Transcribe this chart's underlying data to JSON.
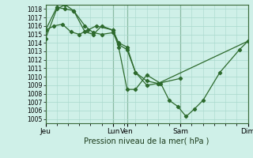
{
  "title": "Pression niveau de la mer( hPa )",
  "background_color": "#cff0e8",
  "grid_color": "#a8d8cc",
  "line_color": "#2d6a2d",
  "marker_color": "#2d6a2d",
  "ylim": [
    1004.5,
    1018.5
  ],
  "yticks": [
    1005,
    1006,
    1007,
    1008,
    1009,
    1010,
    1011,
    1012,
    1013,
    1014,
    1015,
    1016,
    1017,
    1018
  ],
  "xtick_labels": [
    "Jeu",
    "Lun",
    "Ven",
    "Sam",
    "Dim"
  ],
  "xtick_positions": [
    0,
    48,
    58,
    96,
    144
  ],
  "total_x": 144,
  "series1_x": [
    0,
    8,
    14,
    20,
    28,
    34,
    40,
    48,
    52,
    58,
    64,
    72,
    80,
    96
  ],
  "series1_y": [
    1014.5,
    1018.0,
    1018.5,
    1017.8,
    1016.0,
    1015.2,
    1015.0,
    1015.2,
    1013.8,
    1013.2,
    1010.5,
    1009.5,
    1009.2,
    1009.8
  ],
  "series2_x": [
    0,
    8,
    14,
    20,
    28,
    34,
    40,
    48,
    52,
    58,
    64,
    72,
    80,
    144
  ],
  "series2_y": [
    1015.5,
    1018.2,
    1018.0,
    1017.8,
    1015.3,
    1015.0,
    1016.0,
    1015.5,
    1014.0,
    1013.5,
    1010.5,
    1009.0,
    1009.2,
    1014.2
  ],
  "series3_x": [
    0,
    6,
    12,
    18,
    24,
    30,
    36,
    48,
    52,
    58,
    64,
    72,
    82,
    88,
    94,
    100,
    106,
    112,
    124,
    138,
    144
  ],
  "series3_y": [
    1015.5,
    1016.0,
    1016.2,
    1015.3,
    1015.0,
    1015.5,
    1016.0,
    1015.5,
    1013.5,
    1008.5,
    1008.5,
    1010.2,
    1009.2,
    1007.2,
    1006.5,
    1005.3,
    1006.2,
    1007.2,
    1010.5,
    1013.2,
    1014.2
  ]
}
